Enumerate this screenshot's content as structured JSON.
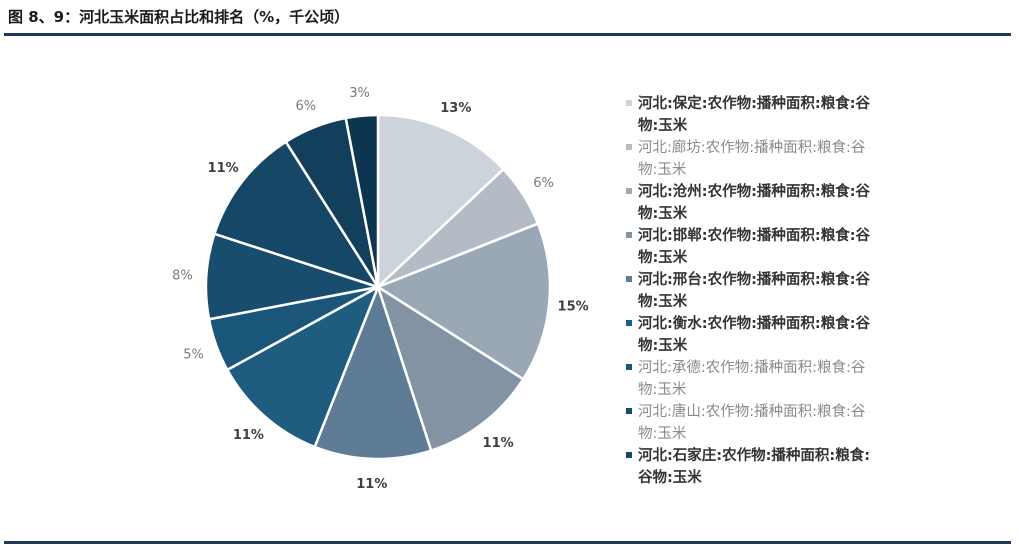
{
  "title": "图 8、9：河北玉米面积占比和排名（%，千公顷）",
  "chart_data": {
    "type": "pie",
    "title": "",
    "slices": [
      {
        "name": "河北:保定:农作物:播种面积:粮食:谷物:玉米",
        "value": 13,
        "label": "13%",
        "color": "#ccd3da",
        "bold": true
      },
      {
        "name": "河北:廊坊:农作物:播种面积:粮食:谷物:玉米",
        "value": 6,
        "label": "6%",
        "color": "#b3bcc6",
        "bold": false
      },
      {
        "name": "河北:沧州:农作物:播种面积:粮食:谷物:玉米",
        "value": 15,
        "label": "15%",
        "color": "#9aa8b5",
        "bold": true
      },
      {
        "name": "河北:邯郸:农作物:播种面积:粮食:谷物:玉米",
        "value": 11,
        "label": "11%",
        "color": "#8393a4",
        "bold": true
      },
      {
        "name": "河北:邢台:农作物:播种面积:粮食:谷物:玉米",
        "value": 11,
        "label": "11%",
        "color": "#5e7c96",
        "bold": true
      },
      {
        "name": "河北:衡水:农作物:播种面积:粮食:谷物:玉米",
        "value": 11,
        "label": "11%",
        "color": "#1e5c80",
        "bold": true
      },
      {
        "name": "河北:承德:农作物:播种面积:粮食:谷物:玉米",
        "value": 5,
        "label": "5%",
        "color": "#1a5679",
        "bold": false
      },
      {
        "name": "河北:唐山:农作物:播种面积:粮食:谷物:玉米",
        "value": 8,
        "label": "8%",
        "color": "#184d6e",
        "bold": false
      },
      {
        "name": "河北:石家庄:农作物:播种面积:粮食:谷物:玉米",
        "value": 11,
        "label": "11%",
        "color": "#164766",
        "bold": true
      },
      {
        "name": "",
        "value": 6,
        "label": "6%",
        "color": "#123f5c",
        "bold": false
      },
      {
        "name": "",
        "value": 3,
        "label": "3%",
        "color": "#0d3450",
        "bold": false
      }
    ],
    "legend_position": "right"
  }
}
